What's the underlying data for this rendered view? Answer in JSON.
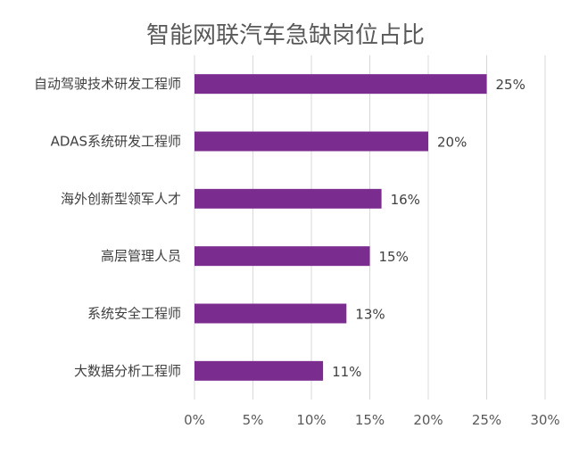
{
  "chart_data": {
    "type": "bar",
    "orientation": "horizontal",
    "title": "智能网联汽车急缺岗位占比",
    "categories": [
      "自动驾驶技术研发工程师",
      "ADAS系统研发工程师",
      "海外创新型领军人才",
      "高层管理人员",
      "系统安全工程师",
      "大数据分析工程师"
    ],
    "values": [
      25,
      20,
      16,
      15,
      13,
      11
    ],
    "value_labels": [
      "25%",
      "20%",
      "16%",
      "15%",
      "13%",
      "11%"
    ],
    "xlim": [
      0,
      30
    ],
    "xticks": [
      "0%",
      "5%",
      "10%",
      "15%",
      "20%",
      "25%",
      "30%"
    ],
    "grid": true,
    "bar_color": "#7b2c8f"
  }
}
